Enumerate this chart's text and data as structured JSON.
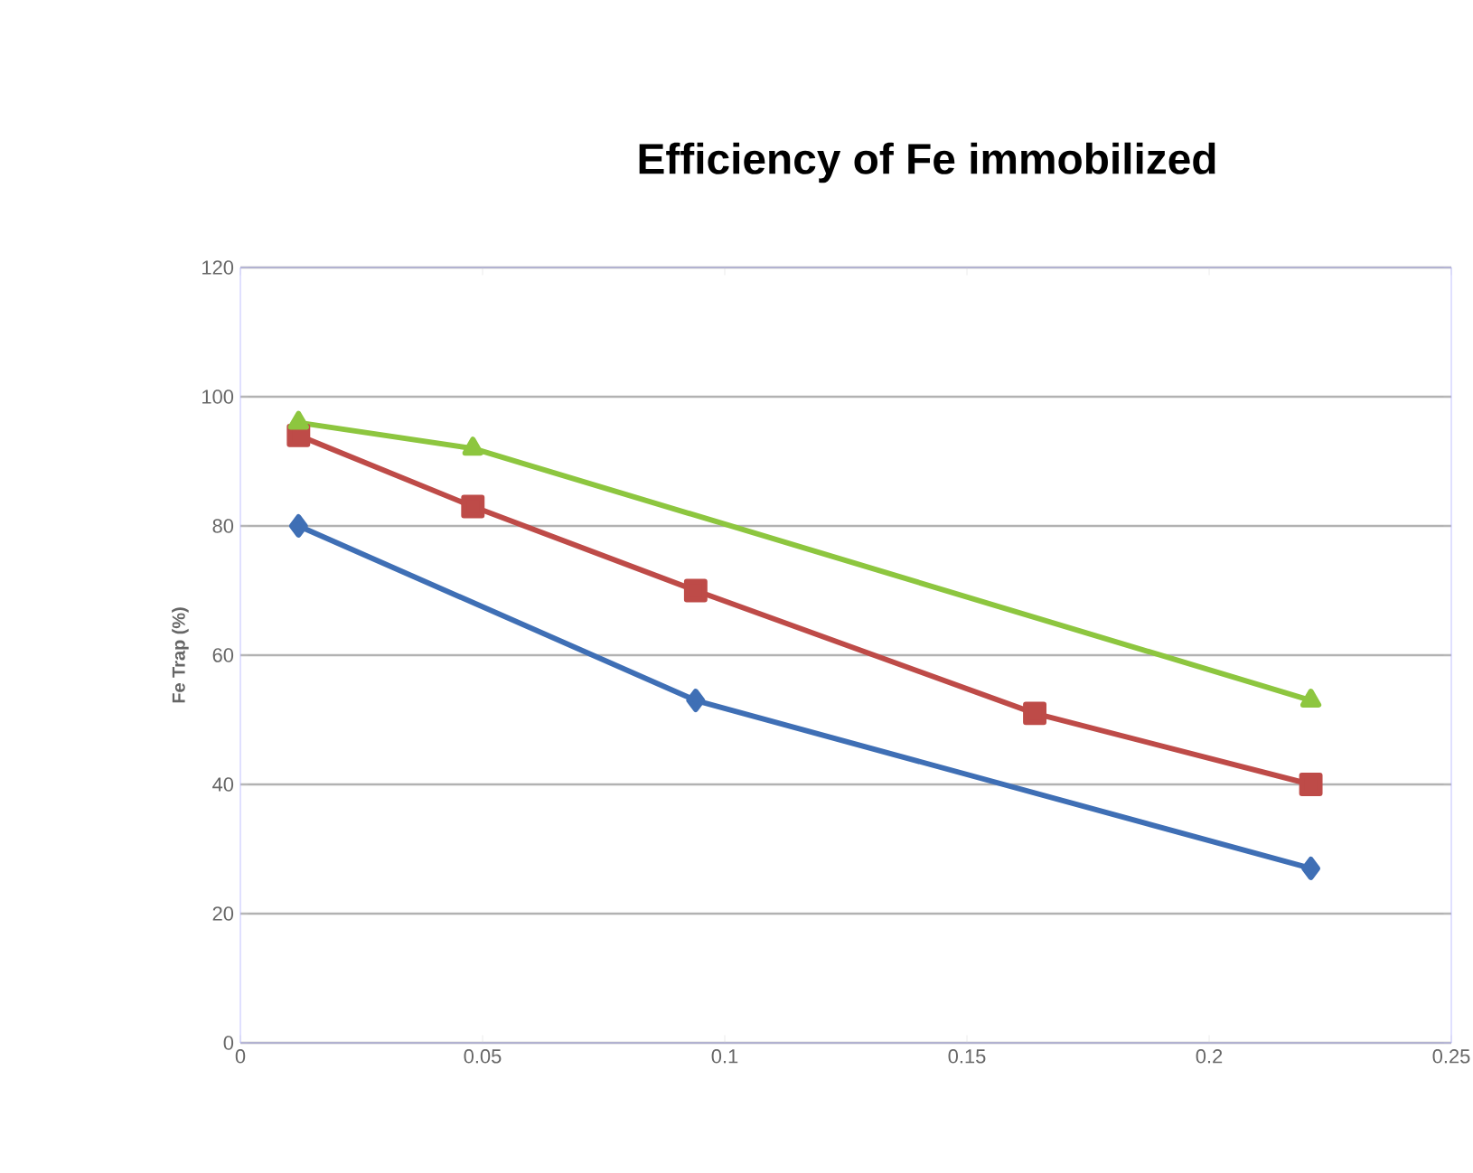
{
  "chart_data": {
    "type": "line",
    "title": "Efficiency of Fe immobilized",
    "ylabel": "Fe Trap (%)",
    "xlim": [
      0,
      0.25
    ],
    "xticks": [
      0,
      0.05,
      0.1,
      0.15,
      0.2,
      0.25
    ],
    "ylim": [
      0,
      120
    ],
    "yticks": [
      0,
      20,
      40,
      60,
      80,
      100,
      120
    ],
    "grid": "y",
    "series": [
      {
        "color": "#3f6fb5",
        "marker": "diamond",
        "x": [
          0.012,
          0.094,
          0.221
        ],
        "values": [
          80,
          53,
          27
        ]
      },
      {
        "color": "#be4b48",
        "marker": "square",
        "x": [
          0.012,
          0.048,
          0.094,
          0.164,
          0.221
        ],
        "values": [
          94,
          83,
          70,
          51,
          40
        ]
      },
      {
        "color": "#8dc63f",
        "marker": "triangle",
        "x": [
          0.012,
          0.048,
          0.221
        ],
        "values": [
          96,
          92,
          53
        ]
      }
    ]
  }
}
